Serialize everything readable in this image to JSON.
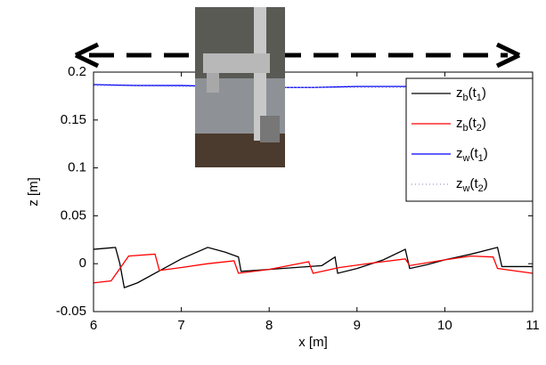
{
  "chart_data": {
    "type": "line",
    "xlabel": "x [m]",
    "ylabel": "z [m]",
    "xlim": [
      6,
      11
    ],
    "xticks": [
      6,
      7,
      8,
      9,
      10,
      11
    ],
    "ylim": [
      -0.05,
      0.2
    ],
    "yticks": [
      -0.05,
      0,
      0.05,
      0.1,
      0.15,
      0.2
    ],
    "legend": "upper right",
    "series": [
      {
        "name": "zb(t1)",
        "color": "#000000",
        "dash": "solid",
        "x": [
          6,
          6.25,
          6.3,
          6.35,
          6.5,
          6.8,
          7.0,
          7.3,
          7.5,
          7.65,
          7.68,
          8.0,
          8.3,
          8.6,
          8.75,
          8.78,
          9.0,
          9.3,
          9.55,
          9.6,
          9.8,
          10.0,
          10.3,
          10.6,
          10.65,
          10.8,
          11
        ],
        "values": [
          0.015,
          0.017,
          0.0,
          -0.025,
          -0.02,
          -0.005,
          0.005,
          0.017,
          0.012,
          0.007,
          -0.008,
          -0.006,
          -0.004,
          -0.002,
          0.007,
          -0.01,
          -0.005,
          0.004,
          0.015,
          -0.005,
          -0.001,
          0.004,
          0.01,
          0.017,
          -0.003,
          -0.003,
          -0.003
        ]
      },
      {
        "name": "zb(t2)",
        "color": "#ff0000",
        "dash": "solid",
        "x": [
          6,
          6.2,
          6.4,
          6.7,
          6.75,
          7.0,
          7.3,
          7.6,
          7.65,
          8.0,
          8.45,
          8.5,
          8.8,
          9.2,
          9.55,
          9.6,
          10.0,
          10.3,
          10.55,
          10.6,
          11
        ],
        "values": [
          -0.02,
          -0.018,
          0.008,
          0.01,
          -0.007,
          -0.004,
          0.0,
          0.003,
          -0.01,
          -0.006,
          0.002,
          -0.01,
          -0.004,
          0.001,
          0.005,
          -0.002,
          0.004,
          0.008,
          0.007,
          -0.005,
          -0.01
        ]
      },
      {
        "name": "zw(t1)",
        "color": "#0000ff",
        "dash": "solid",
        "x": [
          6,
          6.5,
          7,
          7.5,
          8,
          8.5,
          9,
          9.5,
          10,
          10.5,
          11
        ],
        "values": [
          0.187,
          0.186,
          0.186,
          0.185,
          0.184,
          0.184,
          0.185,
          0.185,
          0.185,
          0.184,
          0.18
        ]
      },
      {
        "name": "zw(t2)",
        "color": "#9999cc",
        "dash": "dotted",
        "x": [
          6,
          7,
          8,
          9,
          10,
          11
        ],
        "values": [
          0.186,
          0.185,
          0.184,
          0.184,
          0.184,
          0.181
        ]
      }
    ]
  }
}
